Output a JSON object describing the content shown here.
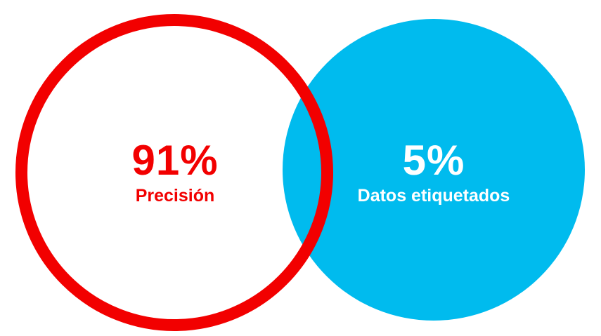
{
  "stats": [
    {
      "value": "91%",
      "label": "Precisión",
      "color": "#f20000",
      "style": "outlined-ring"
    },
    {
      "value": "5%",
      "label": "Datos etiquetados",
      "color": "#00bbee",
      "text_color": "#ffffff",
      "style": "filled-circle"
    }
  ]
}
